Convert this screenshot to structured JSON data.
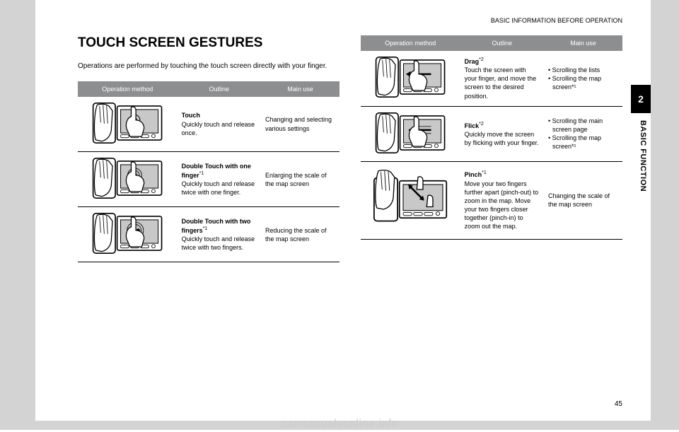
{
  "header": {
    "section": "BASIC INFORMATION BEFORE OPERATION"
  },
  "title": "TOUCH SCREEN GESTURES",
  "intro": "Operations are performed by touching the touch screen directly with your finger.",
  "table_headers": {
    "op": "Operation method",
    "outline": "Outline",
    "use": "Main use"
  },
  "left_rows": [
    {
      "outline_bold": "Touch",
      "outline_rest": "Quickly touch and release once.",
      "use_text": "Changing and selecting various settings",
      "icon": "touch"
    },
    {
      "outline_bold": "Double Touch with one finger",
      "outline_sup": "*1",
      "outline_rest": "Quickly touch and release twice with one finger.",
      "use_text": "Enlarging the scale of the map screen",
      "icon": "double1"
    },
    {
      "outline_bold": "Double Touch with two fingers",
      "outline_sup": "*1",
      "outline_rest": "Quickly touch and release twice with two fingers.",
      "use_text": "Reducing the scale of the map screen",
      "icon": "double2"
    }
  ],
  "right_rows": [
    {
      "outline_bold": "Drag",
      "outline_sup": "*2",
      "outline_rest": "Touch the screen with your finger, and move the screen to the desired position.",
      "use_bullets": [
        "Scrolling the lists",
        "Scrolling the map screen*¹"
      ],
      "icon": "drag"
    },
    {
      "outline_bold": "Flick",
      "outline_sup": "*2",
      "outline_rest": "Quickly move the screen by flicking with your finger.",
      "use_bullets": [
        "Scrolling the main screen page",
        "Scrolling the map screen*¹"
      ],
      "icon": "flick"
    },
    {
      "outline_bold": "Pinch",
      "outline_sup": "*1",
      "outline_rest": "Move your two fingers further apart (pinch-out) to zoom in the map. Move your two fingers closer together (pinch-in) to zoom out the map.",
      "use_text": "Changing the scale of the map screen",
      "icon": "pinch",
      "tall": true
    }
  ],
  "sidebar": {
    "chapter_num": "2",
    "chapter_label": "BASIC FUNCTION"
  },
  "page_number": "45",
  "watermark": "carmanualsonline.info",
  "colors": {
    "page_bg": "#d3d3d3",
    "table_header_bg": "#8d8e90",
    "table_header_fg": "#ffffff",
    "watermark_color": "#cccccc"
  }
}
